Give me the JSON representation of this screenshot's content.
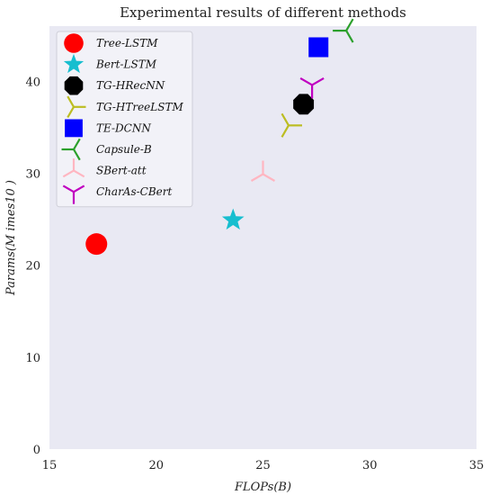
{
  "chart_data": {
    "type": "scatter",
    "title": "Experimental results of different methods",
    "xlabel": "FLOPs(B)",
    "ylabel": "Params(M imes10 )",
    "xlim": [
      15,
      35
    ],
    "ylim": [
      0,
      46
    ],
    "xticks": [
      15,
      20,
      25,
      30,
      35
    ],
    "yticks": [
      0,
      10,
      20,
      30,
      40
    ],
    "grid": false,
    "legend_position": "top-left",
    "background": "#e9e9f3",
    "series": [
      {
        "name": "Tree-LSTM",
        "marker": "circle",
        "color": "#ff0000",
        "x": 17.2,
        "y": 22.3
      },
      {
        "name": "Bert-LSTM",
        "marker": "star",
        "color": "#17becf",
        "x": 23.6,
        "y": 24.9
      },
      {
        "name": "TG-HRecNN",
        "marker": "octagon",
        "color": "#000000",
        "x": 26.9,
        "y": 37.5
      },
      {
        "name": "TG-HTreeLSTM",
        "marker": "tri_right",
        "color": "#bcbd22",
        "x": 26.2,
        "y": 35.2
      },
      {
        "name": "TE-DCNN",
        "marker": "square",
        "color": "#0000ff",
        "x": 27.6,
        "y": 43.7
      },
      {
        "name": "Capsule-B",
        "marker": "tri_left",
        "color": "#2ca02c",
        "x": 28.9,
        "y": 45.5
      },
      {
        "name": "SBert-att",
        "marker": "tri_up",
        "color": "#ffb6c1",
        "x": 25.0,
        "y": 29.9
      },
      {
        "name": "CharAs-CBert",
        "marker": "tri_down",
        "color": "#c000c0",
        "x": 27.3,
        "y": 39.6
      }
    ]
  }
}
